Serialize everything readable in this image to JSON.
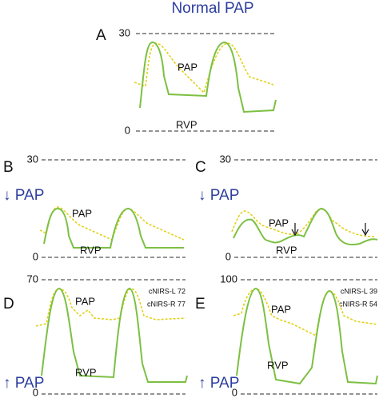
{
  "title": "Normal PAP",
  "panels": [
    {
      "label": "A",
      "top_tick": "30",
      "bottom_tick": "0",
      "pap_label": "PAP",
      "rvp_label": "RVP"
    },
    {
      "label": "B",
      "top_tick": "30",
      "bottom_tick": "0",
      "annotation": "↓ PAP",
      "pap_label": "PAP",
      "rvp_label": "RVP"
    },
    {
      "label": "C",
      "top_tick": "30",
      "bottom_tick": "0",
      "annotation": "↓ PAP",
      "pap_label": "PAP",
      "rvp_label": "RVP"
    },
    {
      "label": "D",
      "top_tick": "70",
      "bottom_tick": "0",
      "annotation": "↑ PAP",
      "pap_label": "PAP",
      "rvp_label": "RVP",
      "notes": [
        "cNIRS-L 72",
        "cNIRS-R 77"
      ]
    },
    {
      "label": "E",
      "top_tick": "100",
      "bottom_tick": "0",
      "annotation": "↑ PAP",
      "pap_label": "PAP",
      "rvp_label": "RVP",
      "notes": [
        "cNIRS-L 39",
        "cNIRS-R 54"
      ]
    }
  ]
}
